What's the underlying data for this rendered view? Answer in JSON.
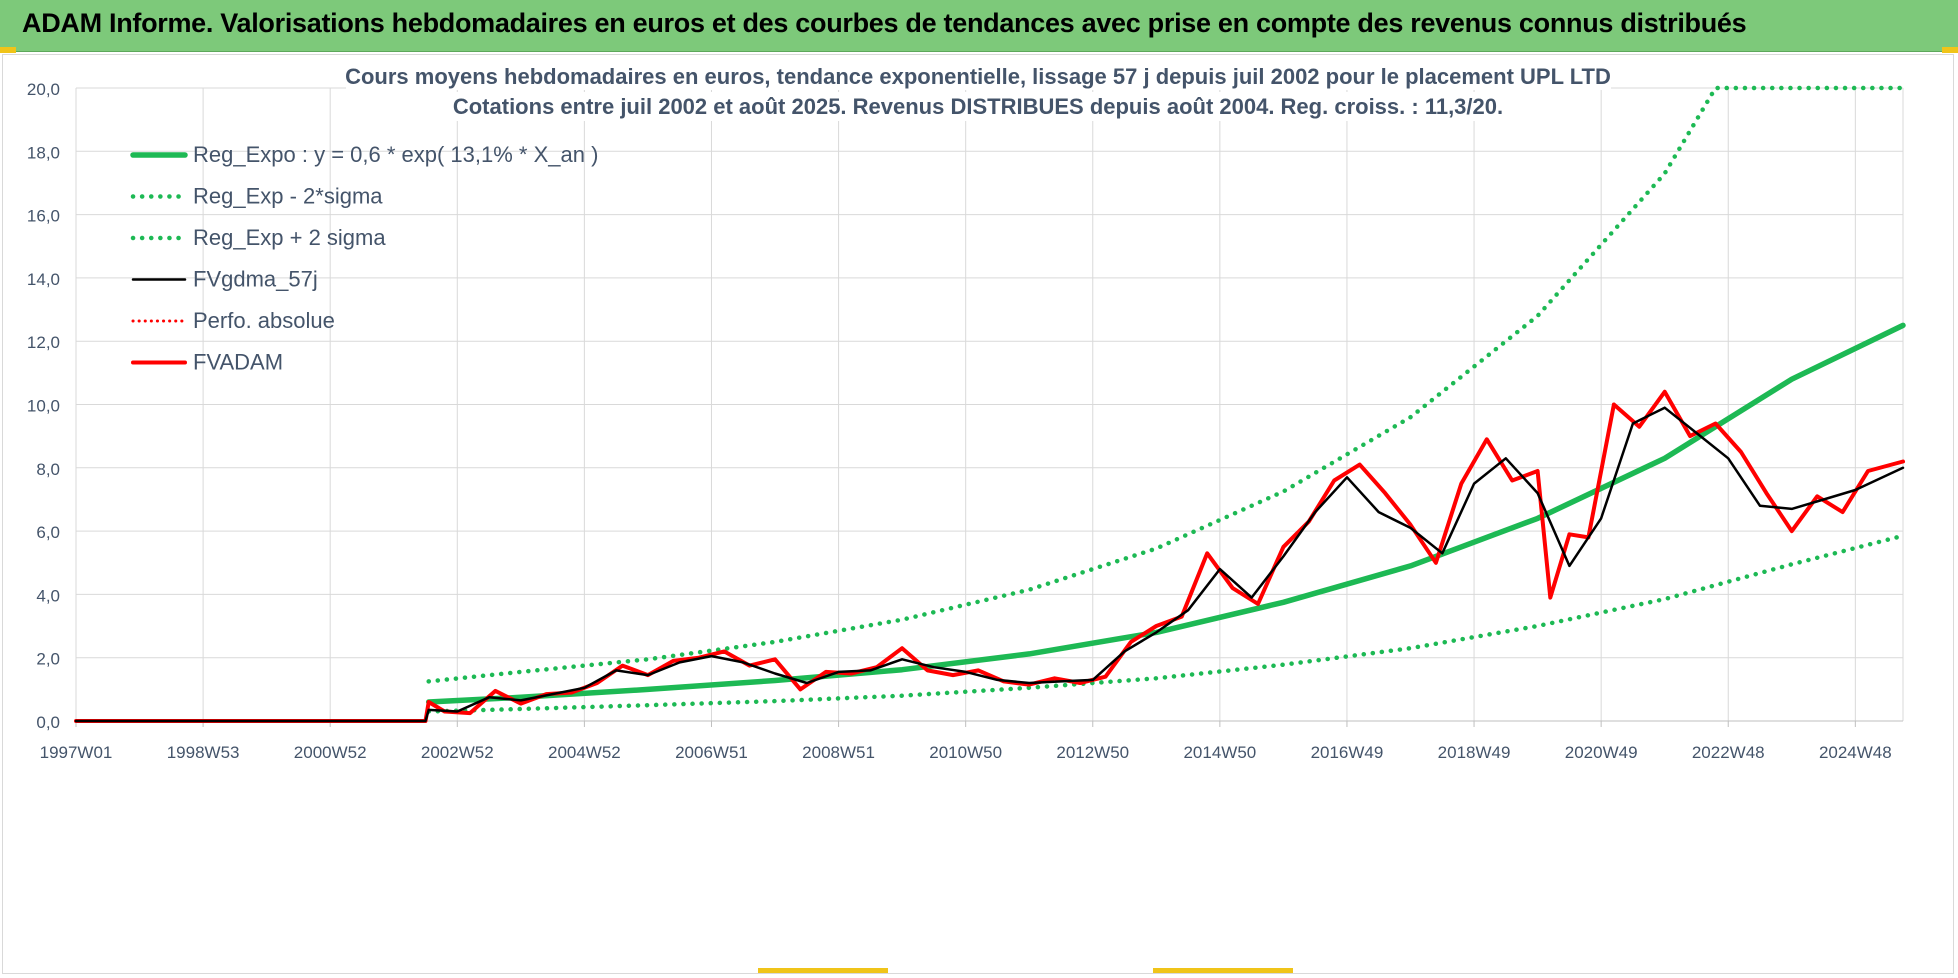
{
  "banner": {
    "title": "ADAM Informe. Valorisations hebdomadaires en euros et des courbes de tendances avec prise en compte des revenus connus distribués"
  },
  "colors": {
    "banner": "#7dc97a",
    "reg_expo": "#1db954",
    "fvadam": "#ff0000",
    "fvgdma": "#000000",
    "grid": "#d9d9d9",
    "text": "#44546a"
  },
  "chart_data": {
    "type": "line",
    "title_line1": "Cours moyens hebdomadaires en euros, tendance exponentielle, lissage 57 j depuis juil 2002 pour le placement UPL LTD",
    "title_line2": "Cotations entre juil 2002 et août 2025. Revenus DISTRIBUES depuis août 2004. Reg. croiss. : 11,3/20.",
    "xlabel": "",
    "ylabel": "",
    "ylim": [
      0,
      20
    ],
    "yticks": [
      "0,0",
      "2,0",
      "4,0",
      "6,0",
      "8,0",
      "10,0",
      "12,0",
      "14,0",
      "16,0",
      "18,0",
      "20,0"
    ],
    "x_tick_labels": [
      "1997W01",
      "1998W53",
      "2000W52",
      "2002W52",
      "2004W52",
      "2006W51",
      "2008W51",
      "2010W50",
      "2012W50",
      "2014W50",
      "2016W49",
      "2018W49",
      "2020W49",
      "2022W48",
      "2024W48"
    ],
    "x_tick_years": [
      1997.0,
      1999.0,
      2001.0,
      2003.0,
      2005.0,
      2007.0,
      2009.0,
      2011.0,
      2013.0,
      2015.0,
      2017.0,
      2019.0,
      2021.0,
      2023.0,
      2025.0
    ],
    "xlim": [
      1997.0,
      2025.75
    ],
    "grid": true,
    "legend_position": "top-left",
    "legend": [
      {
        "label": "Reg_Expo : y = 0,6 * exp( 13,1% *  X_an )",
        "style": "solid-green"
      },
      {
        "label": "Reg_Exp - 2*sigma",
        "style": "dotted-green"
      },
      {
        "label": "Reg_Exp + 2 sigma",
        "style": "dotted-green"
      },
      {
        "label": "FVgdma_57j",
        "style": "solid-black"
      },
      {
        "label": "Perfo. absolue",
        "style": "dotted-red"
      },
      {
        "label": "FVADAM",
        "style": "solid-red"
      }
    ],
    "series": [
      {
        "name": "Reg_Expo : y = 0,6 * exp( 13,1% *  X_an )",
        "x": [
          2002.55,
          2004.0,
          2006.0,
          2008.0,
          2010.0,
          2012.0,
          2014.0,
          2016.0,
          2018.0,
          2020.0,
          2022.0,
          2024.0,
          2025.75
        ],
        "y": [
          0.6,
          0.75,
          1.0,
          1.28,
          1.62,
          2.12,
          2.8,
          3.75,
          4.9,
          6.4,
          8.3,
          10.8,
          12.5
        ]
      },
      {
        "name": "Reg_Exp - 2*sigma",
        "x": [
          2002.55,
          2004.0,
          2006.0,
          2008.0,
          2010.0,
          2012.0,
          2014.0,
          2016.0,
          2018.0,
          2020.0,
          2022.0,
          2024.0,
          2025.75
        ],
        "y": [
          0.3,
          0.38,
          0.5,
          0.63,
          0.8,
          1.05,
          1.35,
          1.78,
          2.3,
          3.0,
          3.85,
          4.95,
          5.85
        ]
      },
      {
        "name": "Reg_Exp + 2 sigma",
        "x": [
          2002.55,
          2004.0,
          2006.0,
          2008.0,
          2010.0,
          2012.0,
          2014.0,
          2016.0,
          2018.0,
          2020.0,
          2022.0,
          2022.8,
          2024.0,
          2025.75
        ],
        "y": [
          1.25,
          1.55,
          1.95,
          2.5,
          3.2,
          4.15,
          5.45,
          7.25,
          9.6,
          12.8,
          17.3,
          20.0,
          20.0,
          20.0
        ]
      },
      {
        "name": "FVgdma_57j",
        "x": [
          1997.0,
          2002.5,
          2002.55,
          2003.0,
          2003.5,
          2004.0,
          2004.5,
          2005.0,
          2005.5,
          2006.0,
          2006.5,
          2007.0,
          2007.5,
          2008.0,
          2008.5,
          2009.0,
          2009.5,
          2010.0,
          2010.5,
          2011.0,
          2011.5,
          2012.0,
          2012.5,
          2013.0,
          2013.5,
          2014.0,
          2014.5,
          2015.0,
          2015.5,
          2016.0,
          2016.5,
          2017.0,
          2017.5,
          2018.0,
          2018.5,
          2019.0,
          2019.5,
          2020.0,
          2020.5,
          2021.0,
          2021.5,
          2022.0,
          2022.5,
          2023.0,
          2023.5,
          2024.0,
          2024.5,
          2025.0,
          2025.75
        ],
        "y": [
          0.0,
          0.0,
          0.35,
          0.3,
          0.75,
          0.65,
          0.85,
          1.05,
          1.6,
          1.45,
          1.85,
          2.05,
          1.85,
          1.5,
          1.2,
          1.55,
          1.6,
          1.95,
          1.7,
          1.55,
          1.3,
          1.2,
          1.25,
          1.3,
          2.2,
          2.8,
          3.5,
          4.8,
          3.9,
          5.2,
          6.6,
          7.7,
          6.6,
          6.1,
          5.3,
          7.5,
          8.3,
          7.2,
          4.9,
          6.4,
          9.4,
          9.9,
          9.1,
          8.3,
          6.8,
          6.7,
          7.0,
          7.3,
          8.0
        ]
      },
      {
        "name": "FVADAM",
        "x": [
          1997.0,
          2002.5,
          2002.55,
          2002.8,
          2003.2,
          2003.6,
          2004.0,
          2004.4,
          2004.8,
          2005.2,
          2005.6,
          2006.0,
          2006.4,
          2006.8,
          2007.2,
          2007.6,
          2008.0,
          2008.4,
          2008.8,
          2009.2,
          2009.6,
          2010.0,
          2010.4,
          2010.8,
          2011.2,
          2011.6,
          2012.0,
          2012.4,
          2012.8,
          2013.2,
          2013.6,
          2014.0,
          2014.4,
          2014.8,
          2015.2,
          2015.6,
          2016.0,
          2016.4,
          2016.8,
          2017.2,
          2017.6,
          2018.0,
          2018.4,
          2018.8,
          2019.2,
          2019.6,
          2020.0,
          2020.2,
          2020.5,
          2020.8,
          2021.2,
          2021.6,
          2022.0,
          2022.4,
          2022.8,
          2023.2,
          2023.6,
          2024.0,
          2024.4,
          2024.8,
          2025.2,
          2025.75
        ],
        "y": [
          0.0,
          0.0,
          0.6,
          0.3,
          0.25,
          0.95,
          0.55,
          0.85,
          0.9,
          1.2,
          1.75,
          1.45,
          1.9,
          2.0,
          2.2,
          1.75,
          1.95,
          1.0,
          1.55,
          1.5,
          1.7,
          2.3,
          1.6,
          1.45,
          1.6,
          1.25,
          1.15,
          1.35,
          1.2,
          1.4,
          2.5,
          3.0,
          3.3,
          5.3,
          4.2,
          3.7,
          5.5,
          6.3,
          7.6,
          8.1,
          7.2,
          6.2,
          5.0,
          7.5,
          8.9,
          7.6,
          7.9,
          3.9,
          5.9,
          5.8,
          10.0,
          9.3,
          10.4,
          9.0,
          9.4,
          8.5,
          7.2,
          6.0,
          7.1,
          6.6,
          7.9,
          8.2
        ]
      }
    ]
  }
}
